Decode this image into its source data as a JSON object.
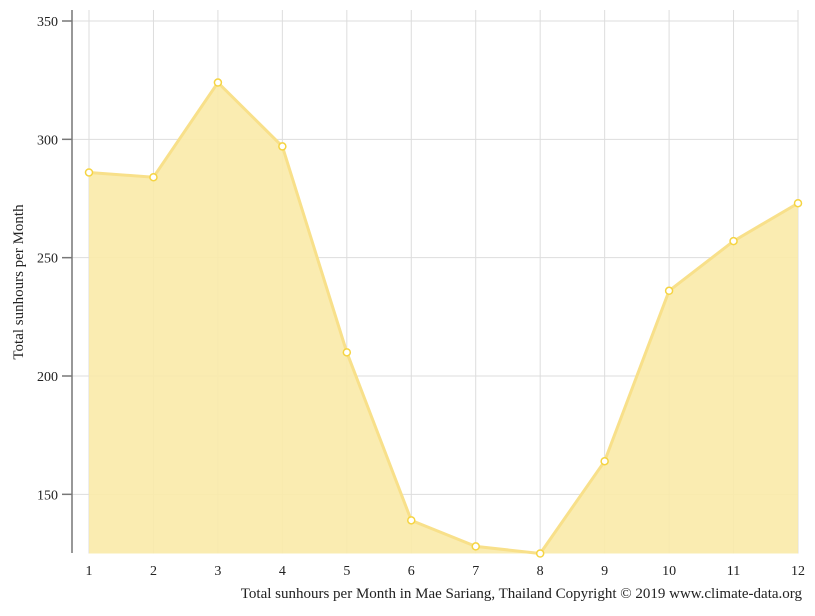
{
  "chart_data": {
    "type": "area",
    "title": "",
    "xlabel": "Total sunhours per Month in Mae Sariang, Thailand Copyright © 2019 www.climate-data.org",
    "ylabel": "Total sunhours per Month",
    "categories": [
      "1",
      "2",
      "3",
      "4",
      "5",
      "6",
      "7",
      "8",
      "9",
      "10",
      "11",
      "12"
    ],
    "values": [
      286,
      284,
      324,
      297,
      210,
      139,
      128,
      125,
      164,
      236,
      257,
      273
    ],
    "ylim": [
      125,
      350
    ],
    "yticks": [
      150,
      200,
      250,
      300,
      350
    ],
    "grid": true,
    "colors": {
      "fill": "#f9eaa8",
      "line": "#f8e08a",
      "marker": "#f5d442"
    }
  }
}
